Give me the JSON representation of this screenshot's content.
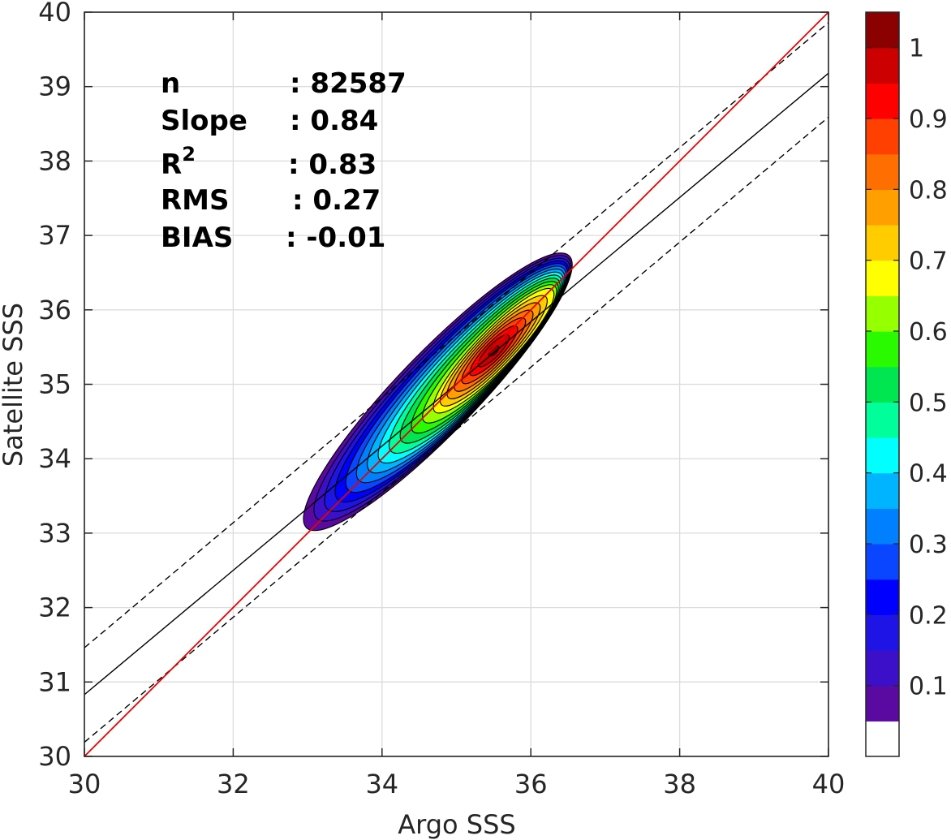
{
  "chart_data": {
    "type": "contour",
    "xlabel": "Argo SSS",
    "ylabel": "Satellite SSS",
    "xlim": [
      30,
      40
    ],
    "ylim": [
      30,
      40
    ],
    "x_ticks": [
      "30",
      "32",
      "34",
      "36",
      "38",
      "40"
    ],
    "y_ticks": [
      "30",
      "31",
      "32",
      "33",
      "34",
      "35",
      "36",
      "37",
      "38",
      "39",
      "40"
    ],
    "grid": true,
    "stats": [
      {
        "label": "n",
        "value": ": 82587"
      },
      {
        "label": "Slope",
        "value": ": 0.84"
      },
      {
        "label": "R",
        "superscript": "2",
        "value": ": 0.83"
      },
      {
        "label": "RMS",
        "value": ": 0.27"
      },
      {
        "label": "BIAS",
        "value": ": -0.01"
      }
    ],
    "one_to_one_line": {
      "x": [
        30,
        40
      ],
      "y": [
        30,
        40
      ],
      "color": "#e60000"
    },
    "fit_line": {
      "x": [
        30,
        40
      ],
      "y": [
        30.83,
        39.18
      ],
      "color": "#000000"
    },
    "upper_bound_line": {
      "x": [
        30,
        40
      ],
      "y": [
        31.46,
        39.86
      ],
      "style": "dashed"
    },
    "lower_bound_line": {
      "x": [
        30,
        40
      ],
      "y": [
        30.19,
        38.59
      ],
      "style": "dashed"
    },
    "density_peak": {
      "x": 35.5,
      "y": 35.45
    },
    "colorbar": {
      "range": [
        0,
        1
      ],
      "tick_labels": [
        "0.1",
        "0.2",
        "0.3",
        "0.4",
        "0.5",
        "0.6",
        "0.7",
        "0.8",
        "0.9",
        "1"
      ],
      "tick_values": [
        0.1,
        0.2,
        0.3,
        0.4,
        0.5,
        0.6,
        0.7,
        0.8,
        0.9,
        1.0
      ],
      "levels": [
        {
          "min": 0.0,
          "max": 0.05,
          "color": "#ffffff"
        },
        {
          "min": 0.05,
          "max": 0.1,
          "color": "#5a0aa0"
        },
        {
          "min": 0.1,
          "max": 0.15,
          "color": "#3c0fc8"
        },
        {
          "min": 0.15,
          "max": 0.2,
          "color": "#1e14e6"
        },
        {
          "min": 0.2,
          "max": 0.25,
          "color": "#0000ff"
        },
        {
          "min": 0.25,
          "max": 0.3,
          "color": "#0a46ff"
        },
        {
          "min": 0.3,
          "max": 0.35,
          "color": "#0080ff"
        },
        {
          "min": 0.35,
          "max": 0.4,
          "color": "#00b4ff"
        },
        {
          "min": 0.4,
          "max": 0.45,
          "color": "#00ffff"
        },
        {
          "min": 0.45,
          "max": 0.5,
          "color": "#00ff9a"
        },
        {
          "min": 0.5,
          "max": 0.55,
          "color": "#00e650"
        },
        {
          "min": 0.55,
          "max": 0.6,
          "color": "#2afa00"
        },
        {
          "min": 0.6,
          "max": 0.65,
          "color": "#96ff00"
        },
        {
          "min": 0.65,
          "max": 0.7,
          "color": "#ffff00"
        },
        {
          "min": 0.7,
          "max": 0.75,
          "color": "#ffcc00"
        },
        {
          "min": 0.75,
          "max": 0.8,
          "color": "#ffa000"
        },
        {
          "min": 0.8,
          "max": 0.85,
          "color": "#ff6e00"
        },
        {
          "min": 0.85,
          "max": 0.9,
          "color": "#ff4000"
        },
        {
          "min": 0.9,
          "max": 0.95,
          "color": "#ff0000"
        },
        {
          "min": 0.95,
          "max": 1.0,
          "color": "#cc0000"
        },
        {
          "min": 1.0,
          "max": 1.05,
          "color": "#8b0000"
        }
      ]
    }
  }
}
